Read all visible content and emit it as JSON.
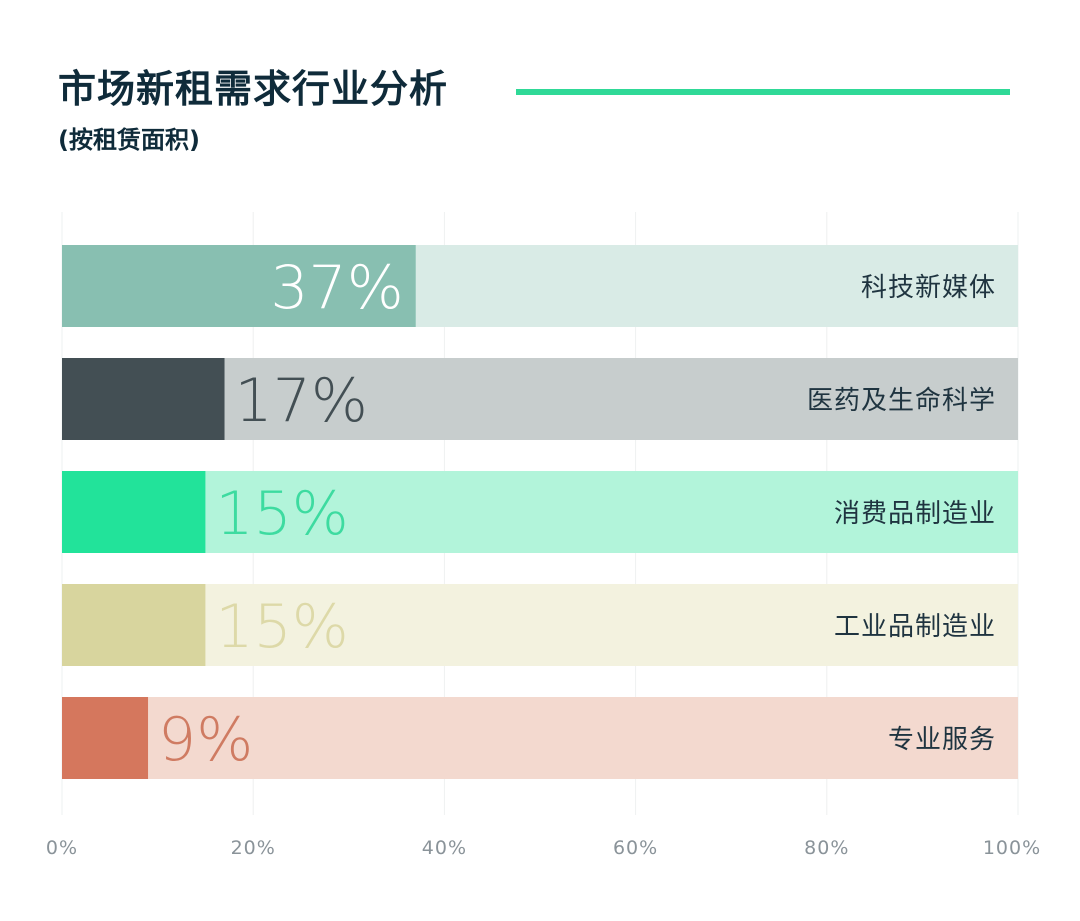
{
  "title": "市场新租需求行业分析",
  "subtitle": "(按租赁面积)",
  "accent_color": "#2fd997",
  "chart_data": {
    "type": "bar",
    "orientation": "horizontal",
    "categories": [
      "科技新媒体",
      "医药及生命科学",
      "消费品制造业",
      "工业品制造业",
      "专业服务"
    ],
    "values": [
      37,
      17,
      15,
      15,
      9
    ],
    "value_labels": [
      "37%",
      "17%",
      "15%",
      "15%",
      "9%"
    ],
    "xlim": [
      0,
      100
    ],
    "x_ticks": [
      0,
      20,
      40,
      60,
      80,
      100
    ],
    "x_tick_labels": [
      "0%",
      "20%",
      "40%",
      "60%",
      "80%",
      "100%"
    ],
    "grid": true,
    "colors": {
      "fill": [
        "#88bfb1",
        "#434f54",
        "#22e39a",
        "#d8d59e",
        "#d5775d"
      ],
      "track": [
        "#d9ebe6",
        "#c7cdcd",
        "#b2f4da",
        "#f3f2df",
        "#f3d9cf"
      ],
      "value_text": [
        "#ffffff",
        "#434f54",
        "#3ddba0",
        "#ddd9a8",
        "#cf7b62"
      ]
    }
  }
}
